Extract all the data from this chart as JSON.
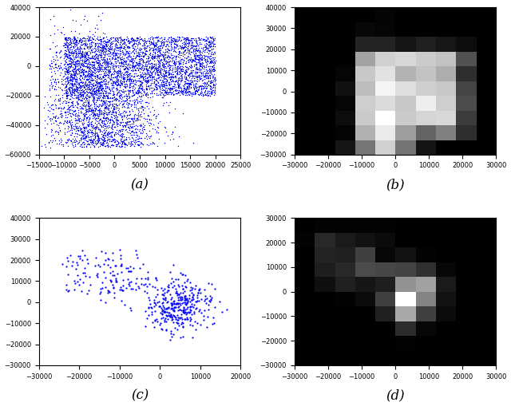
{
  "fig_width": 6.4,
  "fig_height": 5.09,
  "dpi": 100,
  "subplot_labels": [
    "(a)",
    "(b)",
    "(c)",
    "(d)"
  ],
  "label_fontsize": 12,
  "tick_fontsize": 6,
  "panel_a": {
    "xlim": [
      -15000,
      25000
    ],
    "ylim": [
      -60000,
      40000
    ],
    "xticks": [
      -15000,
      -10000,
      -5000,
      0,
      5000,
      10000,
      15000,
      20000,
      25000
    ],
    "yticks": [
      -60000,
      -40000,
      -20000,
      0,
      20000,
      40000
    ],
    "color": "blue",
    "ms": 1.0
  },
  "panel_b": {
    "bins": 10,
    "xlim": [
      -30000,
      30000
    ],
    "ylim": [
      -30000,
      40000
    ],
    "xticks": [
      -30000,
      -20000,
      -10000,
      0,
      10000,
      20000,
      30000
    ],
    "yticks": [
      -30000,
      -20000,
      -10000,
      0,
      10000,
      20000,
      30000,
      40000
    ],
    "cmap": "gray"
  },
  "panel_c": {
    "xlim": [
      -30000,
      20000
    ],
    "ylim": [
      -30000,
      40000
    ],
    "xticks": [
      -30000,
      -20000,
      -10000,
      0,
      10000,
      20000
    ],
    "yticks": [
      -30000,
      -20000,
      -10000,
      0,
      10000,
      20000,
      30000,
      40000
    ],
    "color": "blue",
    "ms": 2.5
  },
  "panel_d": {
    "bins": 10,
    "xlim": [
      -30000,
      30000
    ],
    "ylim": [
      -30000,
      30000
    ],
    "xticks": [
      -30000,
      -20000,
      -10000,
      0,
      10000,
      20000,
      30000
    ],
    "yticks": [
      -30000,
      -20000,
      -10000,
      0,
      10000,
      20000,
      30000
    ],
    "cmap": "gray"
  }
}
